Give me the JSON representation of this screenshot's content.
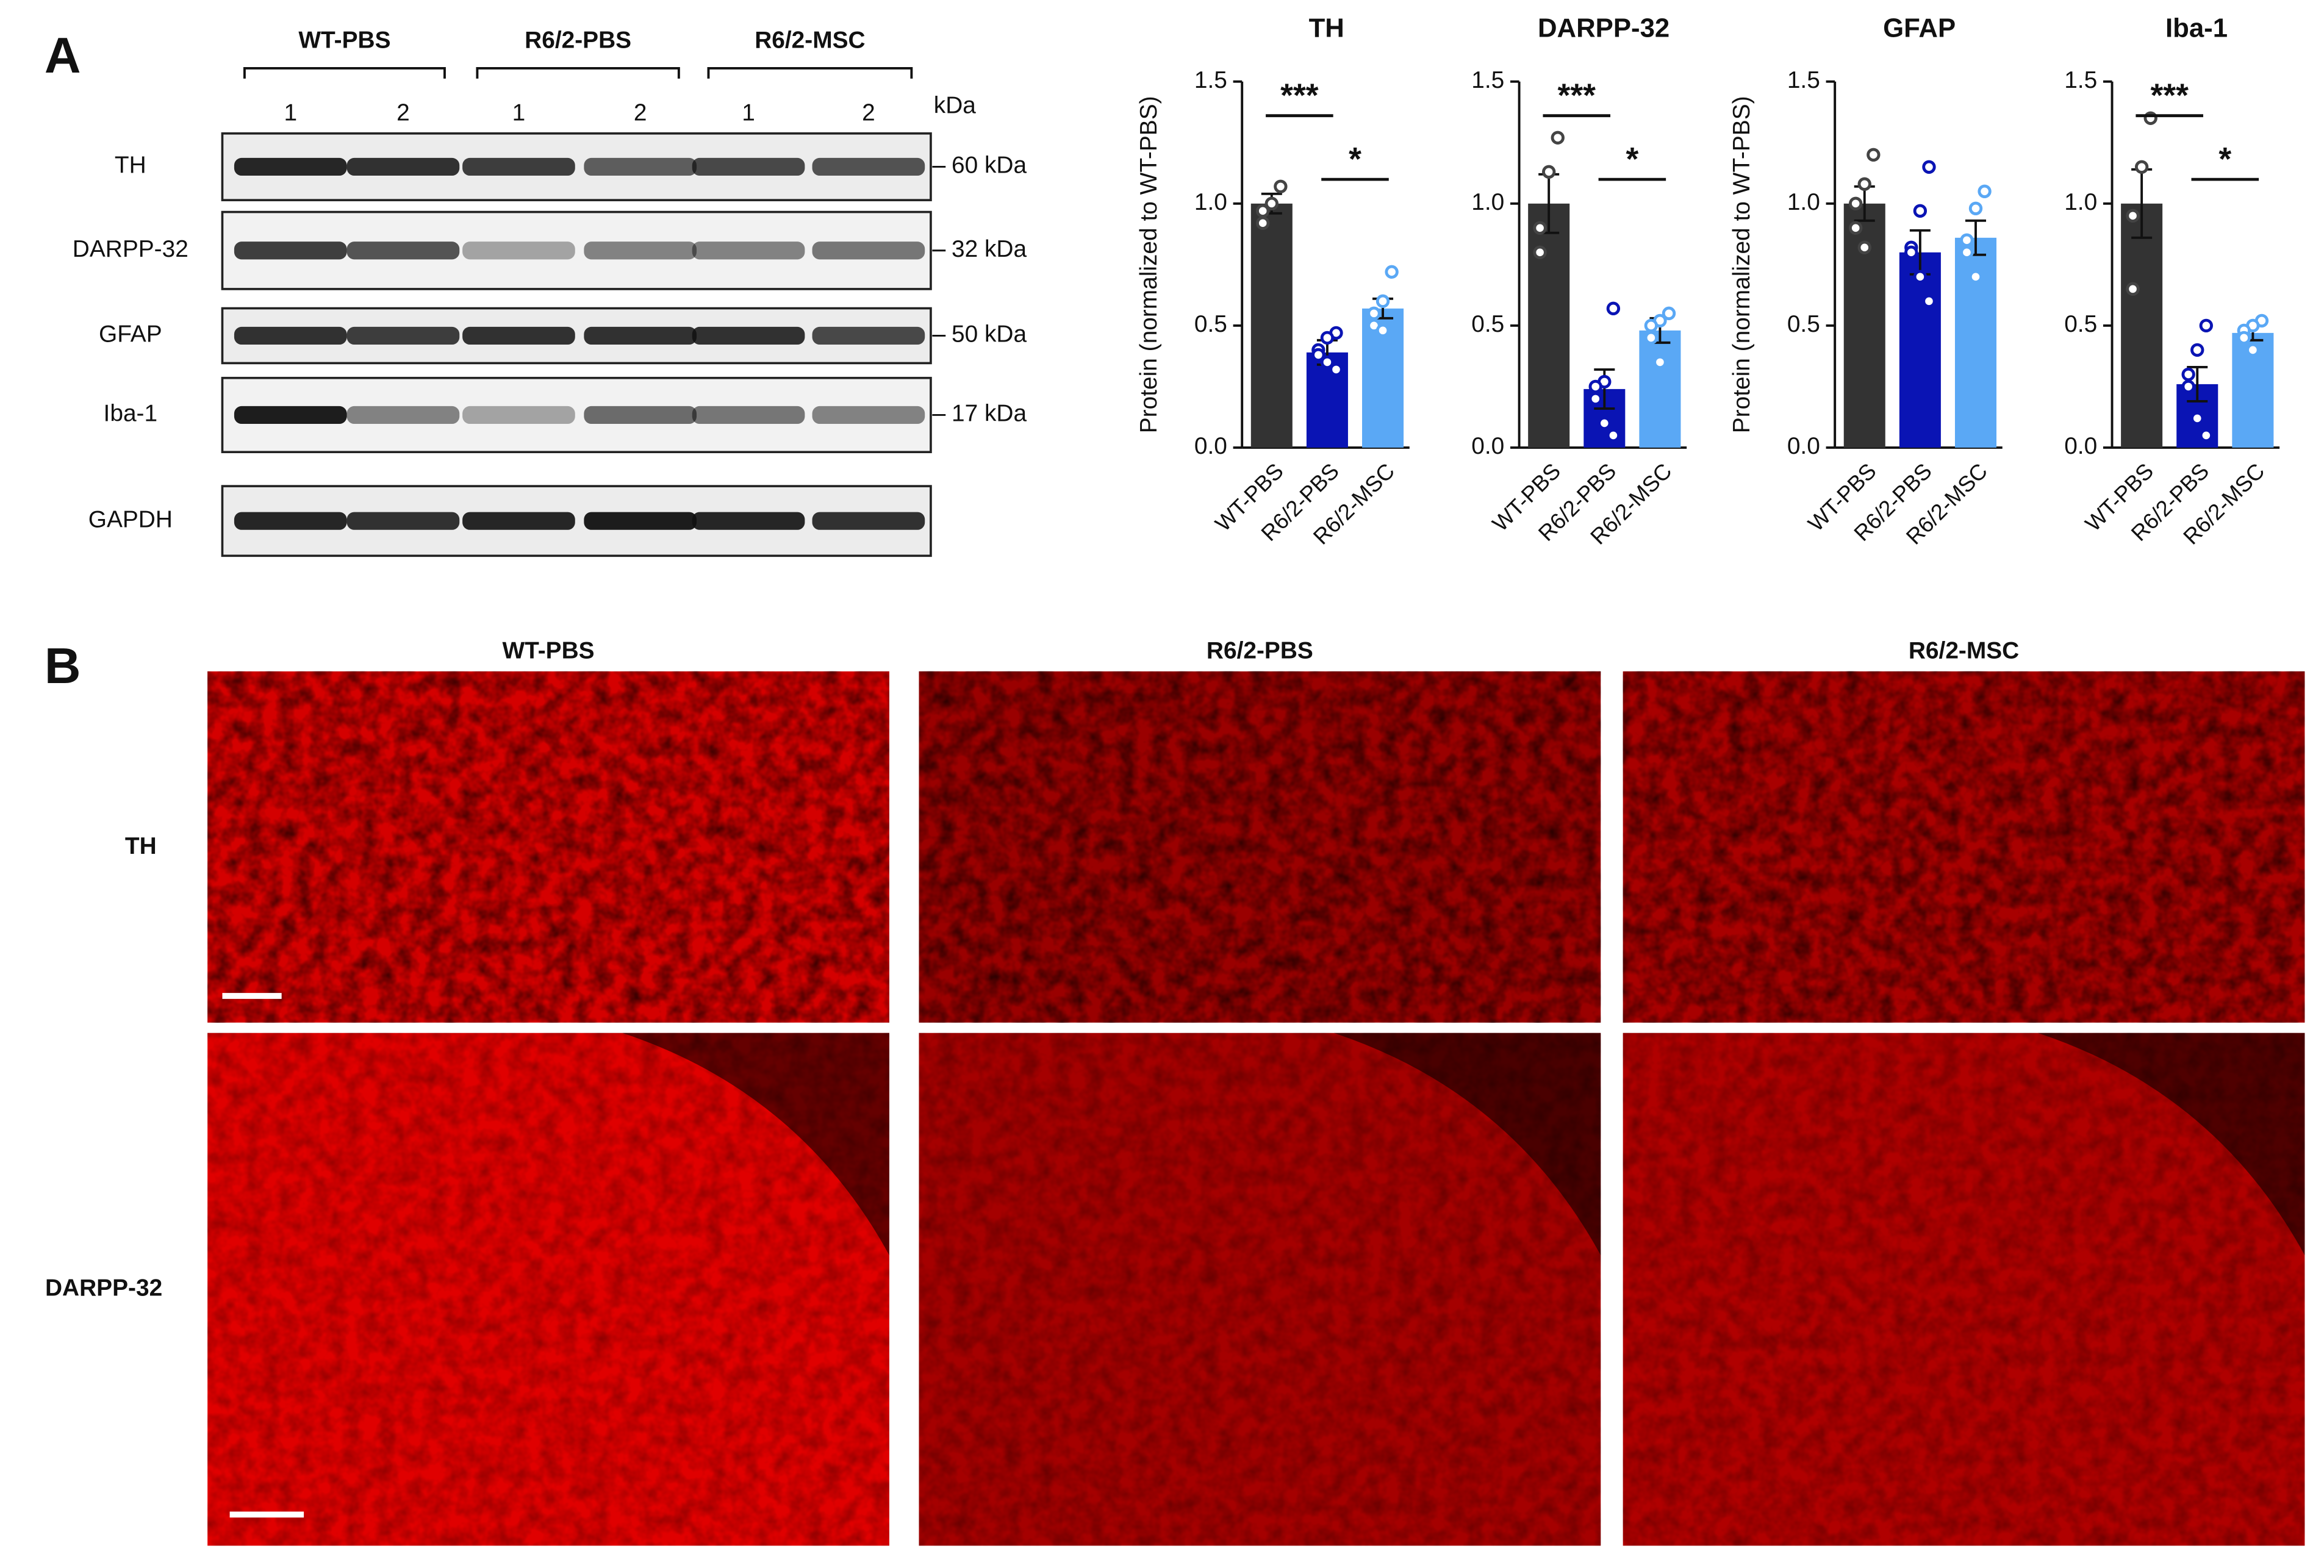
{
  "blot": {
    "panel": "A",
    "groups": [
      "WT-PBS",
      "R6/2-PBS",
      "R6/2-MSC"
    ],
    "lanes": [
      "1",
      "2"
    ],
    "unit": "kDa",
    "rows": [
      {
        "name": "TH",
        "size": "60 kDa"
      },
      {
        "name": "DARPP-32",
        "size": "32 kDa"
      },
      {
        "name": "GFAP",
        "size": "50 kDa"
      },
      {
        "name": "Iba-1",
        "size": "17 kDa"
      },
      {
        "name": "GAPDH"
      }
    ]
  },
  "chart_data": [
    {
      "type": "bar",
      "title": "TH",
      "y_label": "Protein (normalized to WT-PBS)",
      "categories": [
        "WT-PBS",
        "R6/2-PBS",
        "R6/2-MSC"
      ],
      "colors": [
        "#333333",
        "#0a14b4",
        "#5aa8f5"
      ],
      "values": [
        1.0,
        0.39,
        0.57
      ],
      "errors": [
        0.04,
        0.05,
        0.04
      ],
      "points": [
        [
          1.07,
          1.0,
          0.97,
          0.92
        ],
        [
          0.47,
          0.45,
          0.4,
          0.38,
          0.35,
          0.32
        ],
        [
          0.72,
          0.6,
          0.55,
          0.5,
          0.48
        ]
      ],
      "annotations": [
        "***",
        "*"
      ],
      "ylim": [
        0,
        1.5
      ],
      "yticks": [
        {
          "value": 0,
          "label": "0.0"
        },
        0.5,
        {
          "value": 1,
          "label": "1.0"
        },
        1.5
      ]
    },
    {
      "type": "bar",
      "title": "DARPP-32",
      "categories": [
        "WT-PBS",
        "R6/2-PBS",
        "R6/2-MSC"
      ],
      "colors": [
        "#333333",
        "#0a14b4",
        "#5aa8f5"
      ],
      "values": [
        1.0,
        0.24,
        0.48
      ],
      "errors": [
        0.12,
        0.08,
        0.05
      ],
      "points": [
        [
          1.27,
          1.13,
          0.9,
          0.8
        ],
        [
          0.57,
          0.27,
          0.25,
          0.2,
          0.1,
          0.05
        ],
        [
          0.55,
          0.52,
          0.5,
          0.45,
          0.35
        ]
      ],
      "annotations": [
        "***",
        "*"
      ],
      "ylim": [
        0,
        1.5
      ],
      "yticks": [
        {
          "value": 0,
          "label": "0.0"
        },
        0.5,
        {
          "value": 1,
          "label": "1.0"
        },
        1.5
      ]
    },
    {
      "type": "bar",
      "title": "GFAP",
      "y_label": "Protein (normalized to WT-PBS)",
      "categories": [
        "WT-PBS",
        "R6/2-PBS",
        "R6/2-MSC"
      ],
      "colors": [
        "#333333",
        "#0a14b4",
        "#5aa8f5"
      ],
      "values": [
        1.0,
        0.8,
        0.86
      ],
      "errors": [
        0.07,
        0.09,
        0.07
      ],
      "points": [
        [
          1.2,
          1.08,
          1.0,
          0.9,
          0.82
        ],
        [
          1.15,
          0.97,
          0.82,
          0.8,
          0.7,
          0.6
        ],
        [
          1.05,
          0.98,
          0.85,
          0.8,
          0.7
        ]
      ],
      "ylim": [
        0,
        1.5
      ],
      "yticks": [
        {
          "value": 0,
          "label": "0.0"
        },
        0.5,
        {
          "value": 1,
          "label": "1.0"
        },
        1.5
      ]
    },
    {
      "type": "bar",
      "title": "Iba-1",
      "categories": [
        "WT-PBS",
        "R6/2-PBS",
        "R6/2-MSC"
      ],
      "colors": [
        "#333333",
        "#0a14b4",
        "#5aa8f5"
      ],
      "values": [
        1.0,
        0.26,
        0.47
      ],
      "errors": [
        0.14,
        0.07,
        0.03
      ],
      "points": [
        [
          1.35,
          1.15,
          0.95,
          0.65
        ],
        [
          0.5,
          0.4,
          0.3,
          0.25,
          0.12,
          0.05
        ],
        [
          0.52,
          0.5,
          0.48,
          0.45,
          0.4
        ]
      ],
      "annotations": [
        "***",
        "*"
      ],
      "ylim": [
        0,
        1.5
      ],
      "yticks": [
        {
          "value": 0,
          "label": "0.0"
        },
        0.5,
        {
          "value": 1,
          "label": "1.0"
        },
        1.5
      ]
    }
  ],
  "images": {
    "panel": "B",
    "columns": [
      "WT-PBS",
      "R6/2-PBS",
      "R6/2-MSC"
    ],
    "rows": [
      "TH",
      "DARPP-32"
    ]
  }
}
